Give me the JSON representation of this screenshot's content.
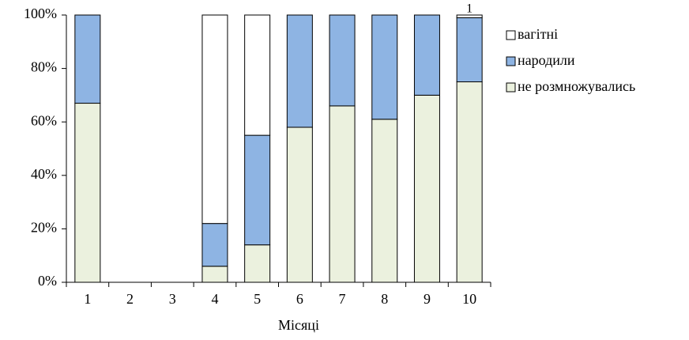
{
  "chart_data": {
    "type": "stacked-bar",
    "x_label": "Місяці",
    "categories": [
      "1",
      "2",
      "3",
      "4",
      "5",
      "6",
      "7",
      "8",
      "9",
      "10"
    ],
    "series": [
      {
        "name": "вагітні",
        "color": "#ffffff",
        "values": [
          0,
          null,
          null,
          78,
          45,
          0,
          0,
          0,
          0,
          1
        ],
        "value_labels": [
          null,
          null,
          null,
          null,
          null,
          null,
          null,
          null,
          null,
          "1"
        ]
      },
      {
        "name": "народили",
        "color": "#8eb4e3",
        "values": [
          33,
          null,
          null,
          16,
          41,
          42,
          34,
          39,
          30,
          24
        ]
      },
      {
        "name": "не розмножувались",
        "color": "#ebf1de",
        "values": [
          67,
          null,
          null,
          6,
          14,
          58,
          66,
          61,
          70,
          75
        ]
      }
    ],
    "ylim": [
      0,
      100
    ],
    "yticks": [
      {
        "value": 0,
        "label": "0%"
      },
      {
        "value": 20,
        "label": "20%"
      },
      {
        "value": 40,
        "label": "40%"
      },
      {
        "value": 60,
        "label": "60%"
      },
      {
        "value": 80,
        "label": "80%"
      },
      {
        "value": 100,
        "label": "100%"
      }
    ],
    "grid": false,
    "legend": "right"
  }
}
